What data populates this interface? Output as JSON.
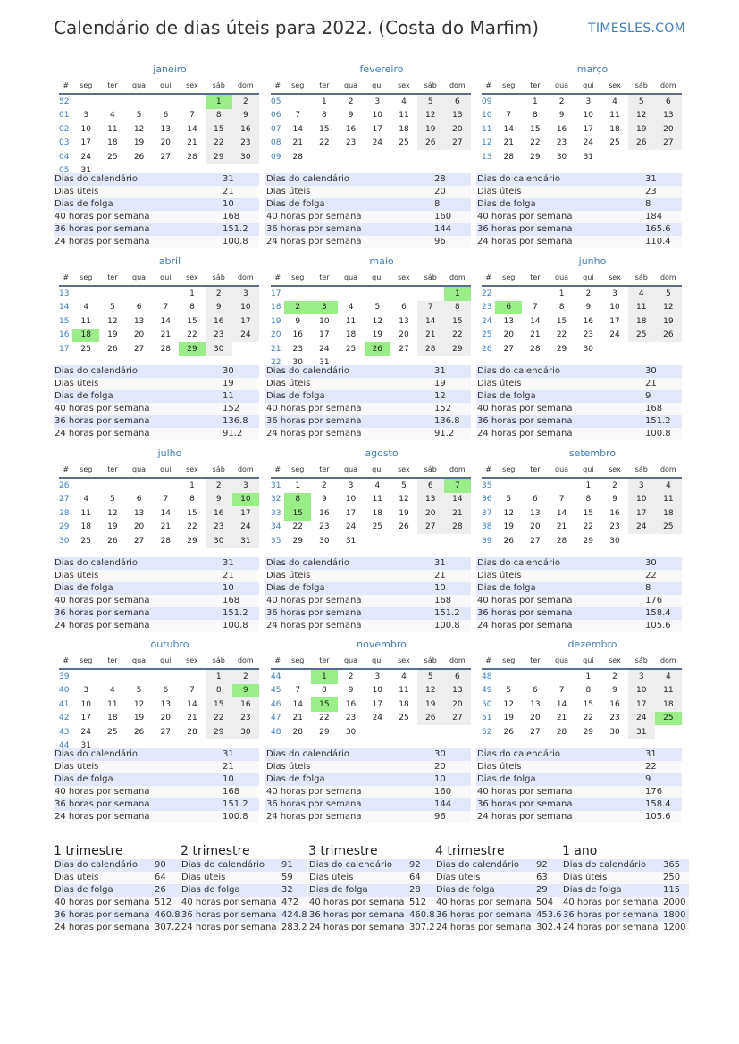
{
  "header": {
    "title": "Calendário de dias úteis para 2022. (Costa do Marfim)",
    "brand": "TIMESLES.COM"
  },
  "weekday_headers": [
    "#",
    "seg",
    "ter",
    "qua",
    "qui",
    "sex",
    "sáb",
    "dom"
  ],
  "stat_labels": [
    "Dias do calendário",
    "Dias úteis",
    "Dias de folga",
    "40 horas por semana",
    "36 horas por semana",
    "24 horas por semana"
  ],
  "colors": {
    "holiday": "#99ee88",
    "weekend": "#eeeeee",
    "week_number": "#3a7dc9",
    "row_alt": "#e3e8fb"
  },
  "months": [
    {
      "name": "janeiro",
      "holidays": [
        1
      ],
      "weeks": [
        [
          "52",
          0,
          0,
          0,
          0,
          0,
          1,
          2
        ],
        [
          "01",
          3,
          4,
          5,
          6,
          7,
          8,
          9
        ],
        [
          "02",
          10,
          11,
          12,
          13,
          14,
          15,
          16
        ],
        [
          "03",
          17,
          18,
          19,
          20,
          21,
          22,
          23
        ],
        [
          "04",
          24,
          25,
          26,
          27,
          28,
          29,
          30
        ],
        [
          "05",
          31,
          0,
          0,
          0,
          0,
          0,
          0
        ]
      ],
      "stats": [
        "31",
        "21",
        "10",
        "168",
        "151.2",
        "100.8"
      ]
    },
    {
      "name": "fevereiro",
      "holidays": [],
      "weeks": [
        [
          "05",
          0,
          1,
          2,
          3,
          4,
          5,
          6
        ],
        [
          "06",
          7,
          8,
          9,
          10,
          11,
          12,
          13
        ],
        [
          "07",
          14,
          15,
          16,
          17,
          18,
          19,
          20
        ],
        [
          "08",
          21,
          22,
          23,
          24,
          25,
          26,
          27
        ],
        [
          "09",
          28,
          0,
          0,
          0,
          0,
          0,
          0
        ]
      ],
      "stats": [
        "28",
        "20",
        "8",
        "160",
        "144",
        "96"
      ]
    },
    {
      "name": "março",
      "holidays": [],
      "weeks": [
        [
          "09",
          0,
          1,
          2,
          3,
          4,
          5,
          6
        ],
        [
          "10",
          7,
          8,
          9,
          10,
          11,
          12,
          13
        ],
        [
          "11",
          14,
          15,
          16,
          17,
          18,
          19,
          20
        ],
        [
          "12",
          21,
          22,
          23,
          24,
          25,
          26,
          27
        ],
        [
          "13",
          28,
          29,
          30,
          31,
          0,
          0,
          0
        ]
      ],
      "stats": [
        "31",
        "23",
        "8",
        "184",
        "165.6",
        "110.4"
      ]
    },
    {
      "name": "abril",
      "holidays": [
        18,
        29
      ],
      "weeks": [
        [
          "13",
          0,
          0,
          0,
          0,
          1,
          2,
          3
        ],
        [
          "14",
          4,
          5,
          6,
          7,
          8,
          9,
          10
        ],
        [
          "15",
          11,
          12,
          13,
          14,
          15,
          16,
          17
        ],
        [
          "16",
          18,
          19,
          20,
          21,
          22,
          23,
          24
        ],
        [
          "17",
          25,
          26,
          27,
          28,
          29,
          30,
          0
        ]
      ],
      "stats": [
        "30",
        "19",
        "11",
        "152",
        "136.8",
        "91.2"
      ]
    },
    {
      "name": "maio",
      "holidays": [
        1,
        2,
        3,
        26
      ],
      "weeks": [
        [
          "17",
          0,
          0,
          0,
          0,
          0,
          0,
          1
        ],
        [
          "18",
          2,
          3,
          4,
          5,
          6,
          7,
          8
        ],
        [
          "19",
          9,
          10,
          11,
          12,
          13,
          14,
          15
        ],
        [
          "20",
          16,
          17,
          18,
          19,
          20,
          21,
          22
        ],
        [
          "21",
          23,
          24,
          25,
          26,
          27,
          28,
          29
        ],
        [
          "22",
          30,
          31,
          0,
          0,
          0,
          0,
          0
        ]
      ],
      "stats": [
        "31",
        "19",
        "12",
        "152",
        "136.8",
        "91.2"
      ]
    },
    {
      "name": "junho",
      "holidays": [
        6
      ],
      "weeks": [
        [
          "22",
          0,
          0,
          1,
          2,
          3,
          4,
          5
        ],
        [
          "23",
          6,
          7,
          8,
          9,
          10,
          11,
          12
        ],
        [
          "24",
          13,
          14,
          15,
          16,
          17,
          18,
          19
        ],
        [
          "25",
          20,
          21,
          22,
          23,
          24,
          25,
          26
        ],
        [
          "26",
          27,
          28,
          29,
          30,
          0,
          0,
          0
        ]
      ],
      "stats": [
        "30",
        "21",
        "9",
        "168",
        "151.2",
        "100.8"
      ]
    },
    {
      "name": "julho",
      "holidays": [
        10
      ],
      "weeks": [
        [
          "26",
          0,
          0,
          0,
          0,
          1,
          2,
          3
        ],
        [
          "27",
          4,
          5,
          6,
          7,
          8,
          9,
          10
        ],
        [
          "28",
          11,
          12,
          13,
          14,
          15,
          16,
          17
        ],
        [
          "29",
          18,
          19,
          20,
          21,
          22,
          23,
          24
        ],
        [
          "30",
          25,
          26,
          27,
          28,
          29,
          30,
          31
        ]
      ],
      "stats": [
        "31",
        "21",
        "10",
        "168",
        "151.2",
        "100.8"
      ]
    },
    {
      "name": "agosto",
      "holidays": [
        7,
        8,
        15
      ],
      "weeks": [
        [
          "31",
          1,
          2,
          3,
          4,
          5,
          6,
          7
        ],
        [
          "32",
          8,
          9,
          10,
          11,
          12,
          13,
          14
        ],
        [
          "33",
          15,
          16,
          17,
          18,
          19,
          20,
          21
        ],
        [
          "34",
          22,
          23,
          24,
          25,
          26,
          27,
          28
        ],
        [
          "35",
          29,
          30,
          31,
          0,
          0,
          0,
          0
        ]
      ],
      "stats": [
        "31",
        "21",
        "10",
        "168",
        "151.2",
        "100.8"
      ]
    },
    {
      "name": "setembro",
      "holidays": [],
      "weeks": [
        [
          "35",
          0,
          0,
          0,
          1,
          2,
          3,
          4
        ],
        [
          "36",
          5,
          6,
          7,
          8,
          9,
          10,
          11
        ],
        [
          "37",
          12,
          13,
          14,
          15,
          16,
          17,
          18
        ],
        [
          "38",
          19,
          20,
          21,
          22,
          23,
          24,
          25
        ],
        [
          "39",
          26,
          27,
          28,
          29,
          30,
          0,
          0
        ]
      ],
      "stats": [
        "30",
        "22",
        "8",
        "176",
        "158.4",
        "105.6"
      ]
    },
    {
      "name": "outubro",
      "holidays": [
        9
      ],
      "weeks": [
        [
          "39",
          0,
          0,
          0,
          0,
          0,
          1,
          2
        ],
        [
          "40",
          3,
          4,
          5,
          6,
          7,
          8,
          9
        ],
        [
          "41",
          10,
          11,
          12,
          13,
          14,
          15,
          16
        ],
        [
          "42",
          17,
          18,
          19,
          20,
          21,
          22,
          23
        ],
        [
          "43",
          24,
          25,
          26,
          27,
          28,
          29,
          30
        ],
        [
          "44",
          31,
          0,
          0,
          0,
          0,
          0,
          0
        ]
      ],
      "stats": [
        "31",
        "21",
        "10",
        "168",
        "151.2",
        "100.8"
      ]
    },
    {
      "name": "novembro",
      "holidays": [
        1,
        15
      ],
      "weeks": [
        [
          "44",
          0,
          1,
          2,
          3,
          4,
          5,
          6
        ],
        [
          "45",
          7,
          8,
          9,
          10,
          11,
          12,
          13
        ],
        [
          "46",
          14,
          15,
          16,
          17,
          18,
          19,
          20
        ],
        [
          "47",
          21,
          22,
          23,
          24,
          25,
          26,
          27
        ],
        [
          "48",
          28,
          29,
          30,
          0,
          0,
          0,
          0
        ]
      ],
      "stats": [
        "30",
        "20",
        "10",
        "160",
        "144",
        "96"
      ]
    },
    {
      "name": "dezembro",
      "holidays": [
        25
      ],
      "weeks": [
        [
          "48",
          0,
          0,
          0,
          1,
          2,
          3,
          4
        ],
        [
          "49",
          5,
          6,
          7,
          8,
          9,
          10,
          11
        ],
        [
          "50",
          12,
          13,
          14,
          15,
          16,
          17,
          18
        ],
        [
          "51",
          19,
          20,
          21,
          22,
          23,
          24,
          25
        ],
        [
          "52",
          26,
          27,
          28,
          29,
          30,
          31,
          0
        ]
      ],
      "stats": [
        "31",
        "22",
        "9",
        "176",
        "158.4",
        "105.6"
      ]
    }
  ],
  "summary": [
    {
      "title": "1 trimestre",
      "stats": [
        "90",
        "64",
        "26",
        "512",
        "460.8",
        "307.2"
      ]
    },
    {
      "title": "2 trimestre",
      "stats": [
        "91",
        "59",
        "32",
        "472",
        "424.8",
        "283.2"
      ]
    },
    {
      "title": "3 trimestre",
      "stats": [
        "92",
        "64",
        "28",
        "512",
        "460.8",
        "307.2"
      ]
    },
    {
      "title": "4 trimestre",
      "stats": [
        "92",
        "63",
        "29",
        "504",
        "453.6",
        "302.4"
      ]
    },
    {
      "title": "1 ano",
      "stats": [
        "365",
        "250",
        "115",
        "2000",
        "1800",
        "1200"
      ]
    }
  ]
}
